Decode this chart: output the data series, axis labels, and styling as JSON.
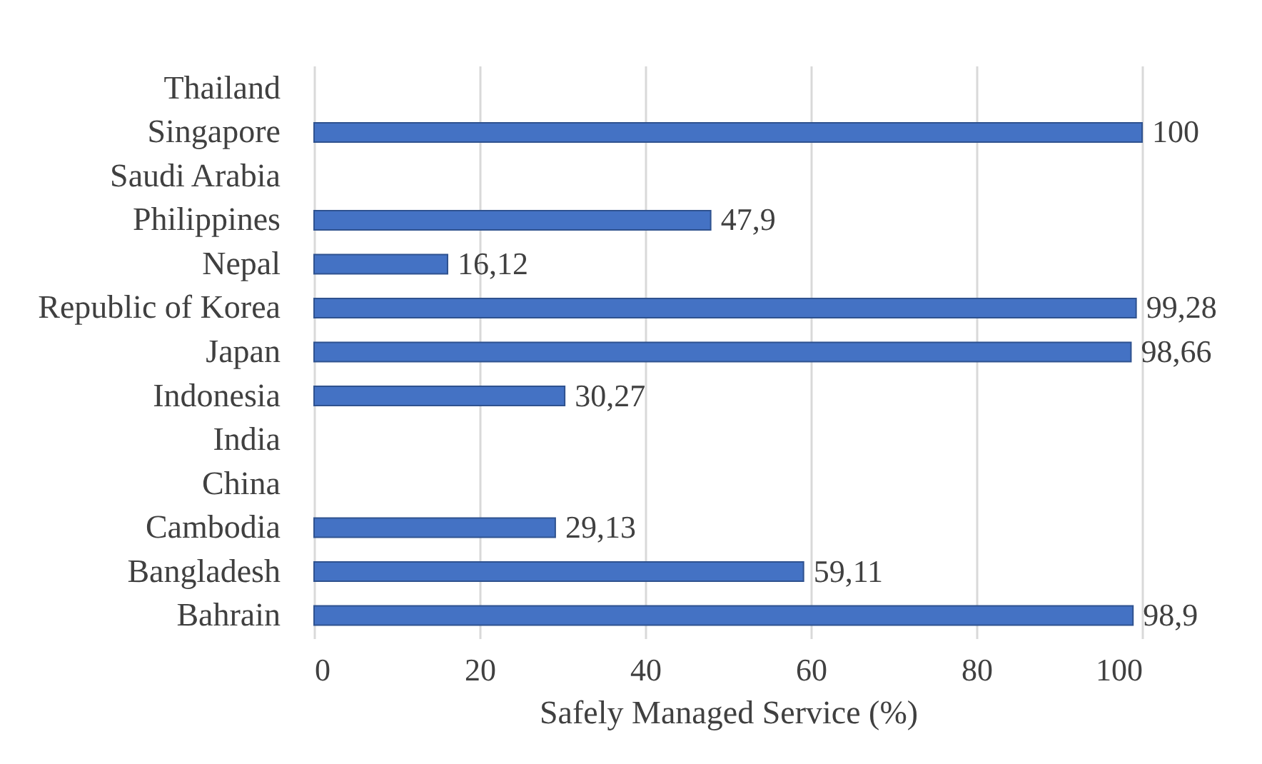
{
  "chart_data": {
    "type": "bar",
    "orientation": "horizontal",
    "xlabel": "Safely Managed Service (%)",
    "categories": [
      "Thailand",
      "Singapore",
      "Saudi Arabia",
      "Philippines",
      "Nepal",
      "Republic of Korea",
      "Japan",
      "Indonesia",
      "India",
      "China",
      "Cambodia",
      "Bangladesh",
      "Bahrain"
    ],
    "values": [
      null,
      100,
      null,
      47.9,
      16.12,
      99.28,
      98.66,
      30.27,
      null,
      null,
      29.13,
      59.11,
      98.9
    ],
    "value_labels": [
      null,
      "100",
      null,
      "47,9",
      "16,12",
      "99,28",
      "98,66",
      "30,27",
      null,
      null,
      "29,13",
      "59,11",
      "98,9"
    ],
    "color": "#4472c4",
    "xlim": [
      0,
      100
    ],
    "xticks": [
      0,
      20,
      40,
      60,
      80,
      100
    ],
    "grid": "x"
  }
}
